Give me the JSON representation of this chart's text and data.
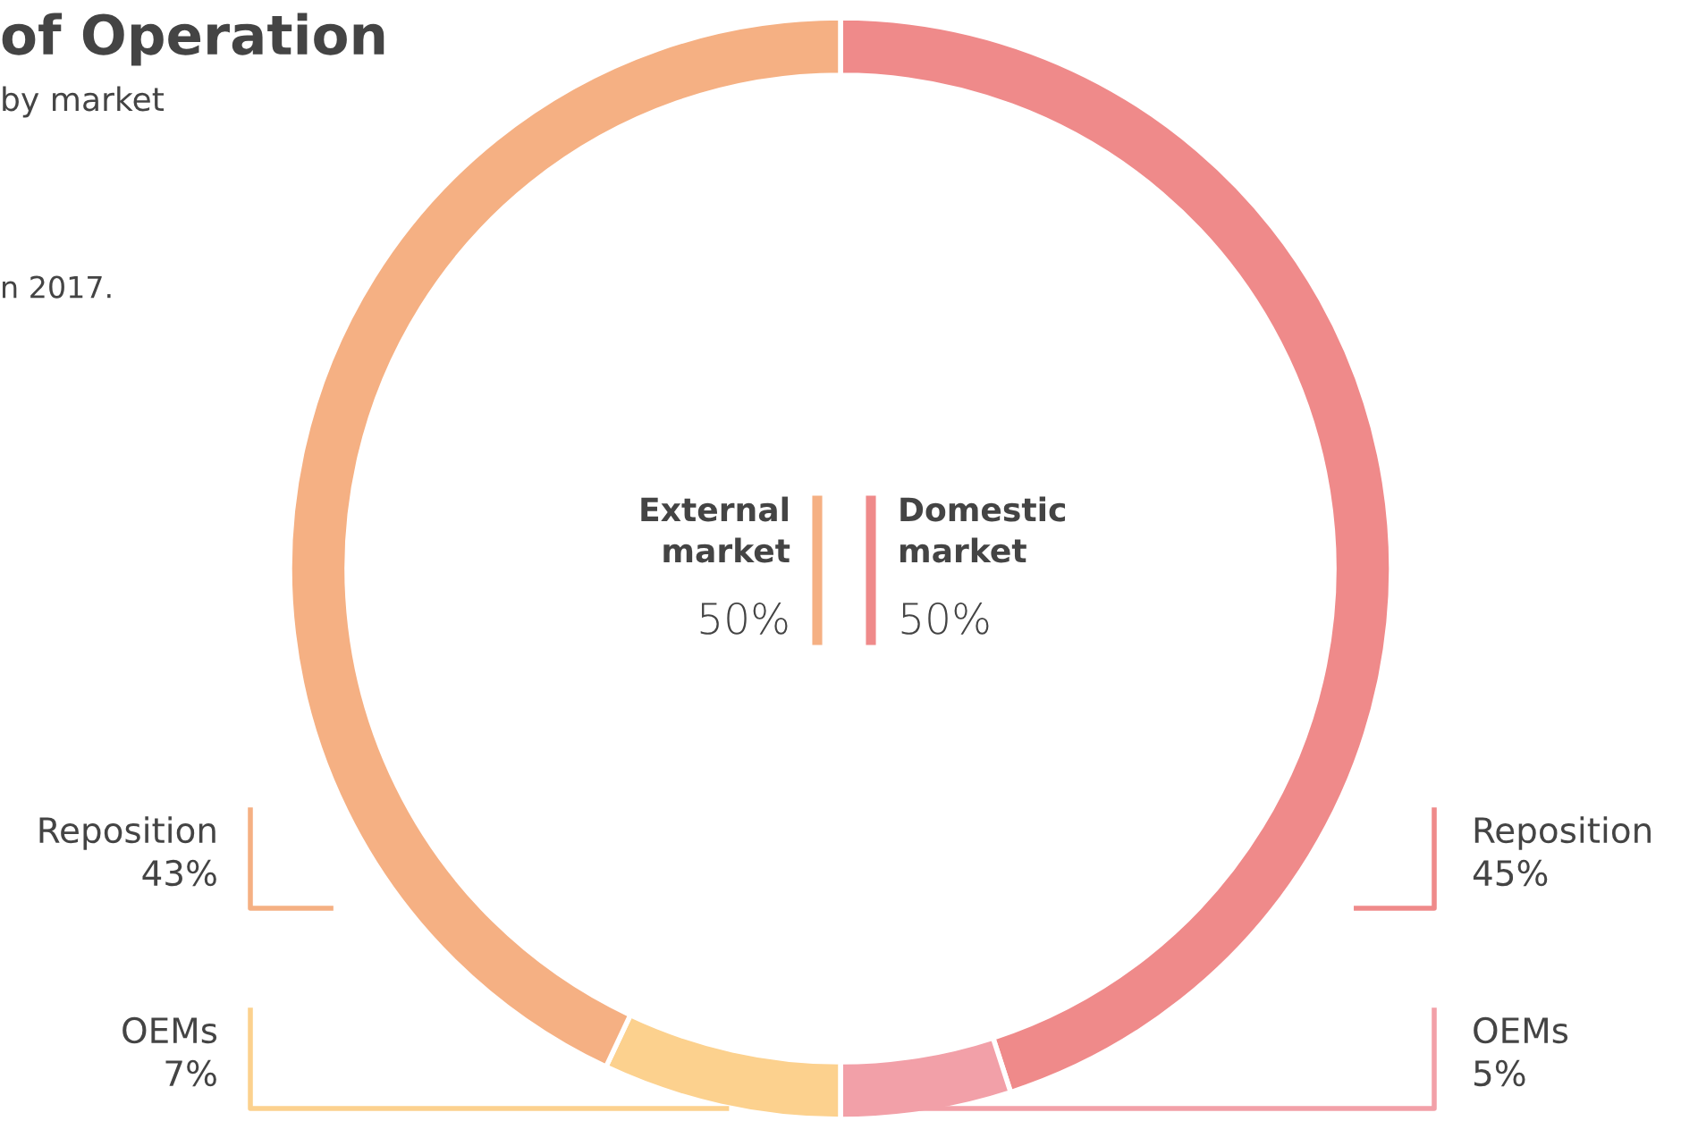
{
  "chart_data": {
    "type": "donut",
    "title": "of Operation",
    "subtitle": "by market",
    "categories": [
      "Reposition",
      "OEMs",
      "OEMs",
      "Reposition"
    ],
    "values": [
      45,
      5,
      7,
      43
    ],
    "colors": [
      "#ef8a8a",
      "#f2a0a8",
      "#fcd18e",
      "#f5b083"
    ],
    "value_labels": [
      "45%",
      "5%",
      "7%",
      "43%"
    ],
    "annotations": [
      "External\nmarket",
      "50%",
      "Domestic\nmarket",
      "50%",
      "n 2017."
    ],
    "legend": false
  }
}
